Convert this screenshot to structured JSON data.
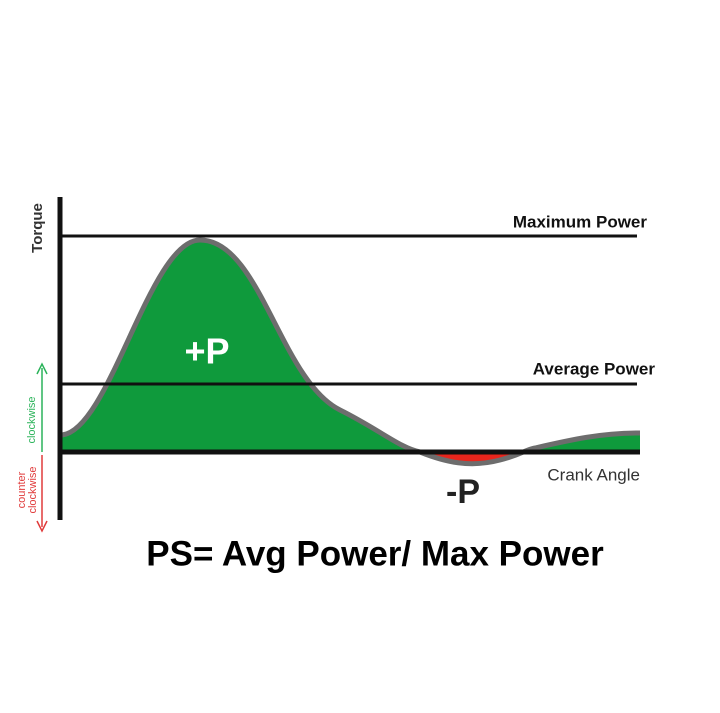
{
  "labels": {
    "y_axis": "Torque",
    "max_line": "Maximum Power",
    "avg_line": "Average Power",
    "x_axis": "Crank Angle",
    "positive": "+P",
    "negative": "-P",
    "clockwise": "clockwise",
    "counter_clockwise": [
      "counter",
      "clockwise"
    ]
  },
  "formula": "PS= Avg Power/ Max Power"
}
